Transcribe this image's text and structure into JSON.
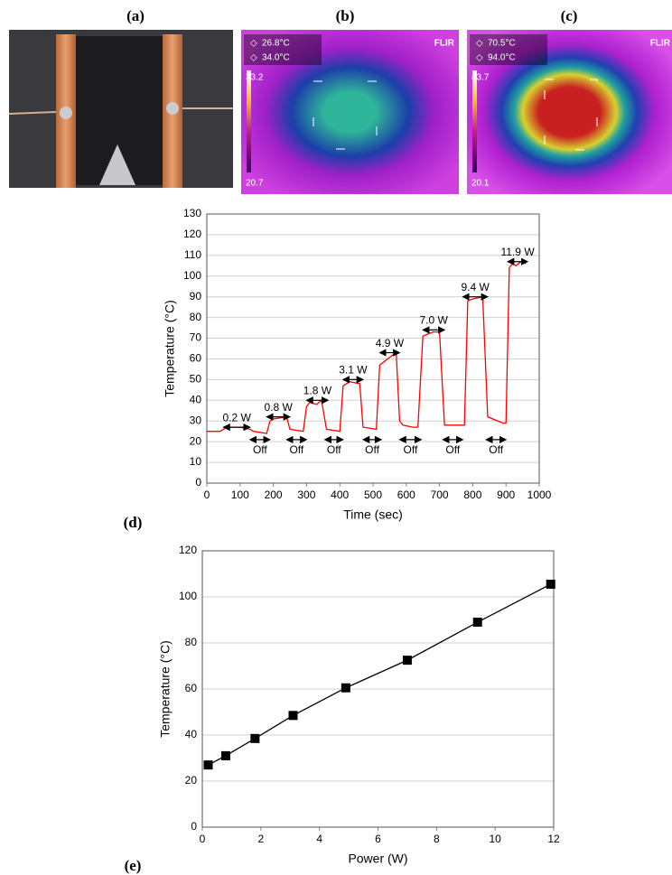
{
  "panels": {
    "labels": [
      "(a)",
      "(b)",
      "(c)",
      "(d)",
      "(e)"
    ],
    "thermal": [
      {
        "spot1": "26.8°C",
        "spot2": "34.0°C",
        "brand": "FLIR",
        "scale_max": "33.2",
        "scale_min": "20.7"
      },
      {
        "spot1": "70.5°C",
        "spot2": "94.0°C",
        "brand": "FLIR",
        "scale_max": "83.7",
        "scale_min": "20.1"
      }
    ]
  },
  "chart_data": [
    {
      "type": "line",
      "x_label": "Time (sec)",
      "y_label": "Temperature (°C)",
      "x": [
        0,
        40,
        50,
        60,
        100,
        130,
        140,
        180,
        190,
        200,
        240,
        250,
        290,
        300,
        310,
        330,
        345,
        360,
        400,
        410,
        430,
        460,
        470,
        510,
        520,
        560,
        570,
        580,
        590,
        620,
        635,
        650,
        680,
        700,
        715,
        760,
        775,
        785,
        800,
        830,
        845,
        890,
        900,
        910,
        920,
        930,
        945,
        960
      ],
      "series": [
        {
          "color": "#ff0000",
          "values": [
            25,
            25,
            26,
            27,
            27,
            26,
            25,
            24,
            30,
            31,
            32,
            26,
            25,
            37,
            39,
            38,
            40,
            26,
            25,
            47,
            49,
            48,
            27,
            26,
            57,
            62,
            62,
            30,
            28,
            27,
            27,
            71,
            73,
            73,
            28,
            28,
            28,
            88,
            89,
            90,
            32,
            29,
            29,
            104,
            106,
            105,
            107,
            106
          ]
        }
      ],
      "xlim": [
        0,
        1000
      ],
      "xticks": [
        0,
        100,
        200,
        300,
        400,
        500,
        600,
        700,
        800,
        900,
        1000
      ],
      "ylim": [
        0,
        130
      ],
      "yticks": [
        0,
        10,
        20,
        30,
        40,
        50,
        60,
        70,
        80,
        90,
        100,
        110,
        120,
        130
      ],
      "grid": true,
      "annotations": [
        {
          "text": "0.2 W",
          "x": [
            50,
            130
          ],
          "y": 27
        },
        {
          "text": "0.8 W",
          "x": [
            180,
            250
          ],
          "y": 32
        },
        {
          "text": "1.8 W",
          "x": [
            300,
            365
          ],
          "y": 40
        },
        {
          "text": "3.1 W",
          "x": [
            410,
            470
          ],
          "y": 50
        },
        {
          "text": "4.9 W",
          "x": [
            520,
            580
          ],
          "y": 63
        },
        {
          "text": "7.0 W",
          "x": [
            650,
            715
          ],
          "y": 74
        },
        {
          "text": "9.4 W",
          "x": [
            770,
            845
          ],
          "y": 90
        },
        {
          "text": "11.9 W",
          "x": [
            905,
            965
          ],
          "y": 107
        },
        {
          "text": "Off",
          "x": [
            130,
            190
          ],
          "y": 21
        },
        {
          "text": "Off",
          "x": [
            240,
            300
          ],
          "y": 21
        },
        {
          "text": "Off",
          "x": [
            355,
            410
          ],
          "y": 21
        },
        {
          "text": "Off",
          "x": [
            470,
            525
          ],
          "y": 21
        },
        {
          "text": "Off",
          "x": [
            580,
            645
          ],
          "y": 21
        },
        {
          "text": "Off",
          "x": [
            710,
            770
          ],
          "y": 21
        },
        {
          "text": "Off",
          "x": [
            840,
            900
          ],
          "y": 21
        }
      ]
    },
    {
      "type": "line",
      "marker": "square",
      "x_label": "Power (W)",
      "y_label": "Temperature (°C)",
      "x": [
        0.2,
        0.8,
        1.8,
        3.1,
        4.9,
        7.0,
        9.4,
        11.9
      ],
      "series": [
        {
          "color": "#000000",
          "values": [
            27,
            31,
            38.5,
            48.5,
            60.5,
            72.5,
            89,
            105.5
          ]
        }
      ],
      "xlim": [
        0,
        12
      ],
      "xticks": [
        0,
        2,
        4,
        6,
        8,
        10,
        12
      ],
      "ylim": [
        0,
        120
      ],
      "yticks": [
        0,
        20,
        40,
        60,
        80,
        100,
        120
      ],
      "grid": true
    }
  ]
}
